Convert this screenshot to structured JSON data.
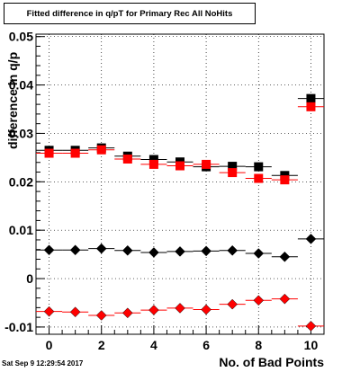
{
  "chart_data": {
    "type": "scatter",
    "title": "Fitted difference in q/pT for Primary Rec All NoHits",
    "xlabel": "No. of Bad Points",
    "ylabel": "difference in q/p",
    "xlim": [
      -0.5,
      10.5
    ],
    "ylim": [
      -0.0115,
      0.0505
    ],
    "x_ticks": [
      "0",
      "2",
      "4",
      "6",
      "8",
      "10"
    ],
    "y_ticks": [
      "-0.01",
      "0",
      "0.01",
      "0.02",
      "0.03",
      "0.04",
      "0.05"
    ],
    "grid": true,
    "x": [
      0,
      1,
      2,
      3,
      4,
      5,
      6,
      7,
      8,
      9,
      10
    ],
    "series": [
      {
        "marker": "square",
        "color": "#000000",
        "values": [
          0.0265,
          0.0265,
          0.027,
          0.0253,
          0.0246,
          0.0241,
          0.0231,
          0.0232,
          0.0231,
          0.0213,
          0.0372
        ]
      },
      {
        "marker": "square",
        "color": "#ff0000",
        "values": [
          0.0259,
          0.0259,
          0.0266,
          0.0247,
          0.0236,
          0.0233,
          0.0236,
          0.0219,
          0.0207,
          0.0204,
          0.0355
        ]
      },
      {
        "marker": "diamond",
        "color": "#000000",
        "values": [
          0.0059,
          0.0059,
          0.0062,
          0.0058,
          0.0054,
          0.0056,
          0.0057,
          0.0058,
          0.0052,
          0.0045,
          0.0082
        ]
      },
      {
        "marker": "diamond",
        "color": "#ff0000",
        "values": [
          -0.0068,
          -0.0069,
          -0.0076,
          -0.0071,
          -0.0065,
          -0.0061,
          -0.0064,
          -0.0053,
          -0.0045,
          -0.0042,
          -0.0098
        ]
      }
    ]
  },
  "footer": {
    "timestamp": "Sat Sep  9 12:29:54 2017"
  }
}
